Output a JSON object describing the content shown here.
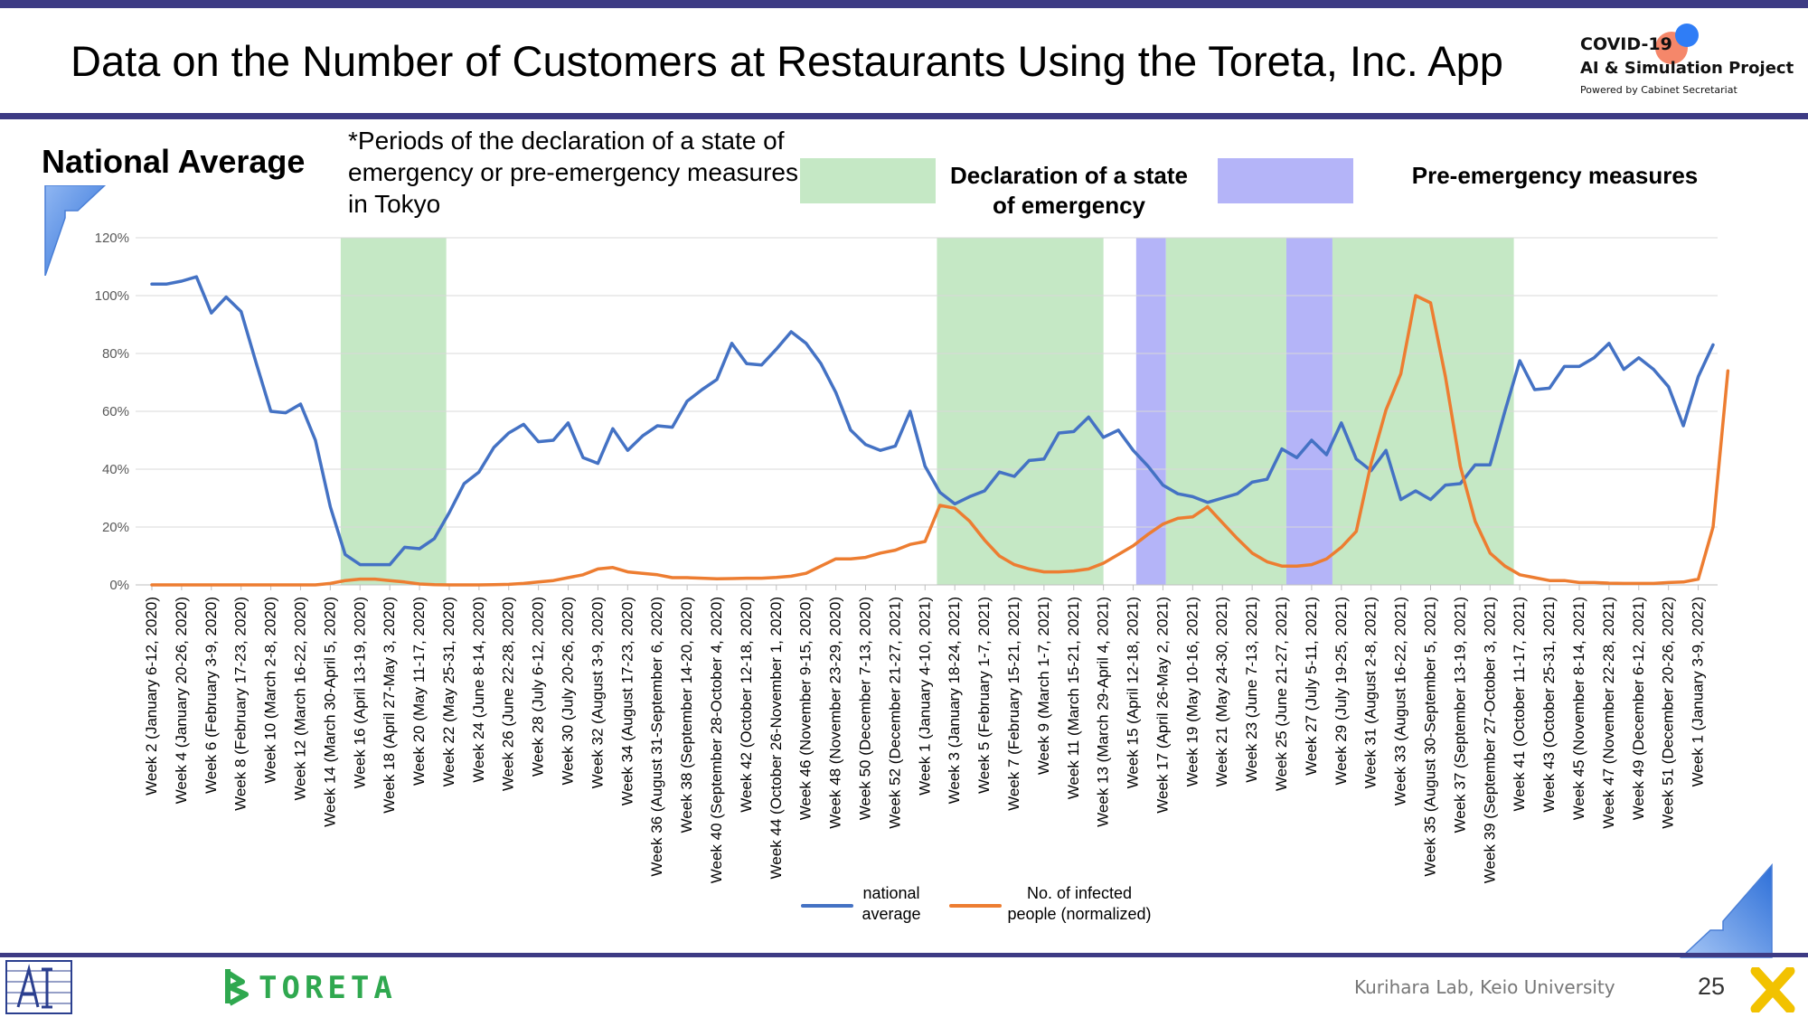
{
  "page": {
    "title": "Data on the Number of Customers at Restaurants Using the Toreta, Inc. App",
    "subtitle": "National Average",
    "note": "*Periods of the declaration of a state of emergency or pre-emergency measures in Tokyo",
    "legend_emergency": "Declaration of a state of emergency",
    "legend_pre": "Pre-emergency measures",
    "footer": "Kurihara Lab, Keio University",
    "page_number": "25",
    "brand_toreta": "TORETA",
    "logo_line1": "COVID-19",
    "logo_line2": "AI & Simulation Project",
    "logo_line3": "Powered by Cabinet Secretariat"
  },
  "colors": {
    "national": "#4472c4",
    "infected": "#ed7d31",
    "emergency_band": "#c5e8c5",
    "pre_band": "#b4b4f8",
    "header_bar": "#3d3b84"
  },
  "chart_data": {
    "type": "line",
    "x_labels": [
      "Week 2 (January 6-12, 2020)",
      "Week 4 (January 20-26, 2020)",
      "Week 6 (February 3-9, 2020)",
      "Week 8 (February 17-23, 2020)",
      "Week 10 (March 2-8, 2020)",
      "Week 12 (March 16-22, 2020)",
      "Week 14 (March 30-April 5, 2020)",
      "Week 16 (April 13-19, 2020)",
      "Week 18 (April 27-May 3, 2020)",
      "Week 20 (May 11-17, 2020)",
      "Week 22 (May 25-31, 2020)",
      "Week 24 (June 8-14, 2020)",
      "Week 26 (June 22-28, 2020)",
      "Week 28 (July 6-12, 2020)",
      "Week 30 (July 20-26, 2020)",
      "Week 32 (August 3-9, 2020)",
      "Week 34 (August 17-23, 2020)",
      "Week 36 (August 31-September 6, 2020)",
      "Week 38 (September 14-20, 2020)",
      "Week 40 (September 28-October 4, 2020)",
      "Week 42 (October 12-18, 2020)",
      "Week 44 (October 26-November 1, 2020)",
      "Week 46 (November 9-15, 2020)",
      "Week 48 (November 23-29, 2020)",
      "Week 50 (December 7-13, 2020)",
      "Week 52 (December 21-27, 2021)",
      "Week 1 (January 4-10, 2021)",
      "Week 3 (January 18-24, 2021)",
      "Week 5 (February 1-7, 2021)",
      "Week 7 (February 15-21, 2021)",
      "Week 9 (March 1-7, 2021)",
      "Week 11 (March 15-21, 2021)",
      "Week 13 (March 29-April 4, 2021)",
      "Week 15 (April 12-18, 2021)",
      "Week 17 (April 26-May 2, 2021)",
      "Week 19 (May 10-16, 2021)",
      "Week 21 (May 24-30, 2021)",
      "Week 23 (June 7-13, 2021)",
      "Week 25 (June 21-27, 2021)",
      "Week 27 (July 5-11, 2021)",
      "Week 29 (July 19-25, 2021)",
      "Week 31 (August 2-8, 2021)",
      "Week 33 (August 16-22, 2021)",
      "Week 35 (August 30-September 5, 2021)",
      "Week 37 (September 13-19, 2021)",
      "Week 39 (September 27-October 3, 2021)",
      "Week 41 (October 11-17, 2021)",
      "Week 43 (October 25-31, 2021)",
      "Week 45 (November 8-14, 2021)",
      "Week 47 (November 22-28, 2021)",
      "Week 49 (December 6-12, 2021)",
      "Week 51 (December 20-26, 2022)",
      "Week 1 (January 3-9, 2022)"
    ],
    "y_ticks": [
      "0%",
      "20%",
      "40%",
      "60%",
      "80%",
      "100%",
      "120%"
    ],
    "ylim": [
      0,
      120
    ],
    "grid": true,
    "legend_position": "bottom",
    "series": [
      {
        "name": "national average",
        "values": [
          104,
          104,
          105,
          106.5,
          94,
          99.5,
          94.5,
          77,
          60,
          59.5,
          62.5,
          50,
          27,
          10.5,
          7,
          7,
          7,
          13,
          12.5,
          16,
          25,
          35,
          39,
          47.5,
          52.5,
          55.5,
          49.5,
          50,
          56,
          44,
          42,
          54,
          46.5,
          51.5,
          55,
          54.5,
          63.5,
          67.5,
          71,
          83.5,
          76.5,
          76,
          81.5,
          87.5,
          83.5,
          76.5,
          66.5,
          53.5,
          48.5,
          46.5,
          48,
          60,
          41,
          32,
          28,
          30.5,
          32.5,
          39,
          37.5,
          43,
          43.5,
          52.5,
          53,
          58,
          51,
          53.5,
          46.5,
          41,
          34.5,
          31.5,
          30.5,
          28.5,
          30,
          31.5,
          35.5,
          36.5,
          47,
          44,
          50,
          45,
          56,
          43.5,
          39.5,
          46.5,
          29.5,
          32.5,
          29.5,
          34.5,
          35,
          41.5,
          41.5,
          60,
          77.5,
          67.5,
          68,
          75.5,
          75.5,
          78.5,
          83.5,
          74.5,
          78.5,
          74.5,
          68.5,
          55,
          72,
          83
        ]
      },
      {
        "name": "No. of infected people (normalized)",
        "values": [
          0,
          0,
          0,
          0,
          0,
          0,
          0,
          0,
          0,
          0,
          0,
          0,
          0.5,
          1.5,
          2,
          2,
          1.5,
          1,
          0.3,
          0.1,
          0,
          0,
          0,
          0.1,
          0.2,
          0.5,
          1,
          1.5,
          2.5,
          3.5,
          5.5,
          6,
          4.5,
          4,
          3.5,
          2.5,
          2.5,
          2.3,
          2.1,
          2.2,
          2.3,
          2.3,
          2.6,
          3,
          4,
          6.5,
          9,
          9,
          9.5,
          11,
          12,
          14,
          15,
          27.5,
          26.5,
          22,
          15.5,
          10,
          7,
          5.5,
          4.5,
          4.5,
          4.8,
          5.5,
          7.5,
          10.5,
          13.5,
          17.5,
          21,
          23,
          23.5,
          27,
          21.5,
          16,
          11,
          8,
          6.5,
          6.5,
          7,
          9,
          13,
          18.5,
          42,
          60.5,
          73,
          100,
          97.5,
          72,
          41,
          22,
          11,
          6.5,
          3.5,
          2.5,
          1.5,
          1.5,
          0.8,
          0.8,
          0.6,
          0.5,
          0.5,
          0.5,
          0.8,
          1,
          2,
          20,
          74
        ]
      }
    ],
    "bands": [
      {
        "type": "Declaration of a state of emergency",
        "start_index": 12.7,
        "end_index": 19.8
      },
      {
        "type": "Declaration of a state of emergency",
        "start_index": 52.8,
        "end_index": 64
      },
      {
        "type": "Pre-emergency measures",
        "start_index": 66.2,
        "end_index": 68.2
      },
      {
        "type": "Declaration of a state of emergency",
        "start_index": 68.2,
        "end_index": 76.3
      },
      {
        "type": "Pre-emergency measures",
        "start_index": 76.3,
        "end_index": 79.4
      },
      {
        "type": "Declaration of a state of emergency",
        "start_index": 79.4,
        "end_index": 91.6
      }
    ]
  }
}
